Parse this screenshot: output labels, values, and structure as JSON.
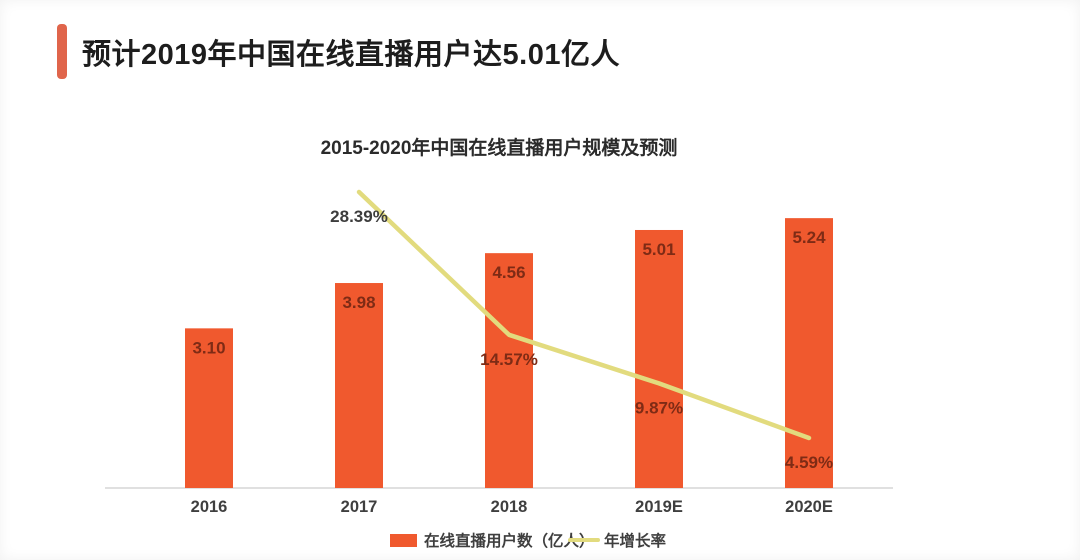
{
  "header": {
    "title": "预计2019年中国在线直播用户达5.01亿人"
  },
  "chart_data": {
    "type": "bar",
    "combo": "bar+line",
    "title": "2015-2020年中国在线直播用户规模及预测",
    "categories": [
      "2016",
      "2017",
      "2018",
      "2019E",
      "2020E"
    ],
    "series": [
      {
        "name": "在线直播用户数（亿人）",
        "type": "bar",
        "values": [
          3.1,
          3.98,
          4.56,
          5.01,
          5.24
        ],
        "value_labels": [
          "3.10",
          "3.98",
          "4.56",
          "5.01",
          "5.24"
        ]
      },
      {
        "name": "年增长率",
        "type": "line",
        "unit": "%",
        "values": [
          null,
          28.39,
          14.57,
          9.87,
          4.59
        ],
        "value_labels": [
          null,
          "28.39%",
          "14.57%",
          "9.87%",
          "4.59%"
        ]
      }
    ],
    "ylim_bar": [
      0,
      5.8
    ],
    "ylim_line_pct": [
      0,
      36
    ],
    "grid": false,
    "legend_position": "bottom"
  },
  "colors": {
    "accent_bar": "#E0654B",
    "bar": "#F0592E",
    "line": "#E2DB7E",
    "bar_value_label": "#7E2B15",
    "pct_label_on_white": "#3D3D3D",
    "pct_label_on_bar": "#7E2B15",
    "axis_line": "#E0E0E0",
    "axis_text": "#3F3F3F",
    "title_text": "#2B2B2B"
  }
}
